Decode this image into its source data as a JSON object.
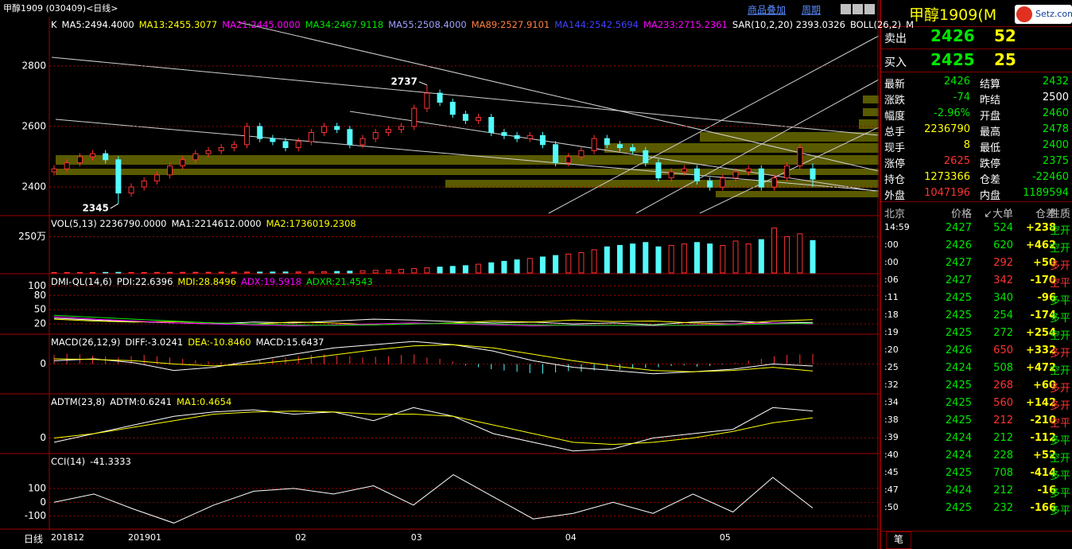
{
  "header": {
    "title": "甲醇1909 (030409)<日线>",
    "buttons": [
      "商品叠加",
      "周期"
    ]
  },
  "chart_data": [
    {
      "type": "candlestick",
      "up_color": "#ff3232",
      "down_color": "#54fcfc",
      "legend": [
        {
          "text": "K",
          "color": "#ffffff"
        },
        {
          "text": "MA5:2494.4000",
          "color": "#ffffff"
        },
        {
          "text": "MA13:2455.3077",
          "color": "#ffff00"
        },
        {
          "text": "MA21:2445.0000",
          "color": "#ff00ff"
        },
        {
          "text": "MA34:2467.9118",
          "color": "#00e600"
        },
        {
          "text": "MA55:2508.4000",
          "color": "#a0a0ff"
        },
        {
          "text": "MA89:2527.9101",
          "color": "#ff8040"
        },
        {
          "text": "MA144:2542.5694",
          "color": "#4040ff"
        },
        {
          "text": "MA233:2715.2361",
          "color": "#ff00ff"
        },
        {
          "text": "SAR(10,2,20) 2393.0326",
          "color": "#ffffff"
        },
        {
          "text": "BOLL(26,2)",
          "color": "#ffffff"
        },
        {
          "text": "M",
          "color": "#ffffff"
        }
      ],
      "ylim": [
        2308,
        2960
      ],
      "yticks": [
        2400,
        2600,
        2800
      ],
      "annotations": [
        2737,
        2345
      ],
      "ohlc": [
        [
          2450,
          2472,
          2438,
          2460
        ],
        [
          2460,
          2492,
          2448,
          2480
        ],
        [
          2480,
          2512,
          2468,
          2500
        ],
        [
          2500,
          2522,
          2488,
          2510
        ],
        [
          2510,
          2522,
          2478,
          2490
        ],
        [
          2490,
          2502,
          2345,
          2380
        ],
        [
          2380,
          2412,
          2368,
          2400
        ],
        [
          2400,
          2432,
          2388,
          2420
        ],
        [
          2420,
          2452,
          2408,
          2440
        ],
        [
          2440,
          2482,
          2428,
          2470
        ],
        [
          2470,
          2502,
          2458,
          2490
        ],
        [
          2490,
          2522,
          2478,
          2510
        ],
        [
          2510,
          2532,
          2498,
          2520
        ],
        [
          2520,
          2542,
          2508,
          2530
        ],
        [
          2530,
          2552,
          2518,
          2540
        ],
        [
          2540,
          2612,
          2528,
          2600
        ],
        [
          2600,
          2612,
          2548,
          2560
        ],
        [
          2560,
          2572,
          2538,
          2550
        ],
        [
          2550,
          2562,
          2518,
          2530
        ],
        [
          2530,
          2562,
          2518,
          2550
        ],
        [
          2550,
          2592,
          2538,
          2580
        ],
        [
          2580,
          2612,
          2568,
          2600
        ],
        [
          2600,
          2612,
          2578,
          2590
        ],
        [
          2590,
          2602,
          2528,
          2540
        ],
        [
          2540,
          2572,
          2528,
          2560
        ],
        [
          2560,
          2592,
          2548,
          2580
        ],
        [
          2580,
          2602,
          2568,
          2590
        ],
        [
          2590,
          2612,
          2578,
          2600
        ],
        [
          2600,
          2672,
          2588,
          2660
        ],
        [
          2660,
          2737,
          2648,
          2710
        ],
        [
          2710,
          2722,
          2668,
          2680
        ],
        [
          2680,
          2692,
          2628,
          2640
        ],
        [
          2640,
          2652,
          2608,
          2620
        ],
        [
          2620,
          2642,
          2608,
          2630
        ],
        [
          2630,
          2642,
          2568,
          2580
        ],
        [
          2580,
          2592,
          2558,
          2570
        ],
        [
          2570,
          2582,
          2548,
          2560
        ],
        [
          2560,
          2582,
          2548,
          2570
        ],
        [
          2570,
          2582,
          2528,
          2540
        ],
        [
          2540,
          2552,
          2468,
          2480
        ],
        [
          2480,
          2512,
          2468,
          2500
        ],
        [
          2500,
          2532,
          2488,
          2520
        ],
        [
          2520,
          2572,
          2508,
          2560
        ],
        [
          2560,
          2572,
          2528,
          2540
        ],
        [
          2540,
          2552,
          2518,
          2530
        ],
        [
          2530,
          2542,
          2508,
          2520
        ],
        [
          2520,
          2532,
          2468,
          2480
        ],
        [
          2480,
          2492,
          2418,
          2430
        ],
        [
          2430,
          2462,
          2418,
          2450
        ],
        [
          2450,
          2472,
          2438,
          2460
        ],
        [
          2460,
          2472,
          2408,
          2420
        ],
        [
          2420,
          2432,
          2388,
          2400
        ],
        [
          2400,
          2442,
          2388,
          2430
        ],
        [
          2430,
          2462,
          2418,
          2450
        ],
        [
          2450,
          2472,
          2438,
          2460
        ],
        [
          2460,
          2472,
          2388,
          2400
        ],
        [
          2400,
          2442,
          2388,
          2430
        ],
        [
          2430,
          2482,
          2418,
          2470
        ],
        [
          2470,
          2542,
          2458,
          2530
        ],
        [
          2460,
          2478,
          2400,
          2426
        ]
      ]
    },
    {
      "type": "bar",
      "legend": [
        {
          "text": "VOL(5,13) 2236790.0000",
          "color": "#ffffff"
        },
        {
          "text": "MA1:2214612.0000",
          "color": "#ffffff"
        },
        {
          "text": "MA2:1736019.2308",
          "color": "#ffff00"
        }
      ],
      "ylim": [
        0,
        3900000
      ],
      "yticks": [
        {
          "value": 2500000,
          "label": "250万"
        }
      ],
      "values": [
        30000,
        25000,
        28000,
        30000,
        35000,
        40000,
        30000,
        32000,
        35000,
        38000,
        40000,
        42000,
        45000,
        50000,
        55000,
        60000,
        58000,
        62000,
        65000,
        70000,
        80000,
        90000,
        100000,
        120000,
        150000,
        180000,
        200000,
        250000,
        300000,
        350000,
        400000,
        450000,
        500000,
        600000,
        700000,
        800000,
        900000,
        1000000,
        1100000,
        1200000,
        1300000,
        1400000,
        1600000,
        1800000,
        1900000,
        2000000,
        2100000,
        1800000,
        1900000,
        2000000,
        2100000,
        2000000,
        1900000,
        2200000,
        2000000,
        2300000,
        3100000,
        2500000,
        2700000,
        2236790
      ]
    },
    {
      "type": "line",
      "legend": [
        {
          "text": "DMI-QL(14,6)",
          "color": "#ffffff"
        },
        {
          "text": "PDI:22.6396",
          "color": "#ffffff"
        },
        {
          "text": "MDI:28.8496",
          "color": "#ffff00"
        },
        {
          "text": "ADX:19.5918",
          "color": "#ff00ff"
        },
        {
          "text": "ADXR:21.4543",
          "color": "#00e600"
        }
      ],
      "ylim": [
        0,
        124
      ],
      "yticks": [
        20,
        50,
        80,
        100
      ],
      "series": [
        {
          "color": "#ffffff",
          "values": [
            32,
            28,
            25,
            22,
            20,
            24,
            22,
            26,
            30,
            28,
            25,
            22,
            24,
            20,
            22,
            18,
            24,
            26,
            22,
            23
          ]
        },
        {
          "color": "#ffff00",
          "values": [
            30,
            26,
            24,
            25,
            22,
            20,
            24,
            22,
            18,
            20,
            22,
            26,
            24,
            28,
            25,
            26,
            22,
            20,
            26,
            29
          ]
        },
        {
          "color": "#ff00ff",
          "values": [
            35,
            30,
            26,
            22,
            20,
            18,
            16,
            18,
            20,
            22,
            20,
            18,
            16,
            18,
            17,
            16,
            18,
            20,
            22,
            20
          ]
        },
        {
          "color": "#00e600",
          "values": [
            38,
            34,
            30,
            26,
            22,
            20,
            18,
            17,
            18,
            20,
            21,
            20,
            18,
            17,
            17,
            17,
            17,
            18,
            20,
            21
          ]
        }
      ]
    },
    {
      "type": "line",
      "up_color": "#ff3232",
      "down_color": "#54fcfc",
      "legend": [
        {
          "text": "MACD(26,12,9)",
          "color": "#ffffff"
        },
        {
          "text": "DIFF:-3.0241",
          "color": "#ffffff"
        },
        {
          "text": "DEA:-10.8460",
          "color": "#ffff00"
        },
        {
          "text": "MACD:15.6437",
          "color": "#ffffff"
        }
      ],
      "ylim": [
        -45,
        45
      ],
      "yticks": [
        0
      ],
      "bars": [
        14,
        16,
        15,
        13,
        12,
        10,
        12,
        14,
        12,
        10,
        8,
        6,
        4,
        3,
        2,
        4,
        6,
        8,
        10,
        12,
        14,
        15,
        13,
        12,
        10,
        11,
        12,
        14,
        15,
        10,
        8,
        4,
        -2,
        -5,
        -8,
        -10,
        -12,
        -14,
        -15,
        -13,
        -11,
        -12,
        -10,
        -8,
        -9,
        -7,
        -6,
        -5,
        -3,
        -2,
        -4,
        -3,
        -1,
        2,
        5,
        8,
        12,
        14,
        15,
        15.6437
      ],
      "series": [
        {
          "color": "#ffffff",
          "values": [
            5,
            8,
            2,
            -10,
            -5,
            5,
            15,
            25,
            30,
            35,
            30,
            20,
            5,
            -5,
            -10,
            -15,
            -12,
            -8,
            0,
            -3.0241
          ]
        },
        {
          "color": "#ffff00",
          "values": [
            8,
            7,
            5,
            0,
            -3,
            0,
            6,
            14,
            22,
            28,
            30,
            25,
            15,
            5,
            -3,
            -10,
            -12,
            -10,
            -5,
            -10.846
          ]
        }
      ]
    },
    {
      "type": "line",
      "legend": [
        {
          "text": "ADTM(23,8)",
          "color": "#ffffff"
        },
        {
          "text": "ADTM:0.6241",
          "color": "#ffffff"
        },
        {
          "text": "MA1:0.4654",
          "color": "#ffff00"
        }
      ],
      "ylim": [
        -0.34,
        1.0
      ],
      "yticks": [
        0
      ],
      "series": [
        {
          "color": "#ffffff",
          "values": [
            -0.1,
            0.1,
            0.3,
            0.5,
            0.6,
            0.65,
            0.55,
            0.6,
            0.4,
            0.7,
            0.5,
            0.1,
            -0.1,
            -0.3,
            -0.25,
            0.0,
            0.1,
            0.2,
            0.7,
            0.6241
          ]
        },
        {
          "color": "#ffff00",
          "values": [
            0,
            0.1,
            0.25,
            0.4,
            0.55,
            0.6,
            0.62,
            0.6,
            0.55,
            0.55,
            0.5,
            0.3,
            0.1,
            -0.1,
            -0.15,
            -0.1,
            0.0,
            0.15,
            0.35,
            0.4654
          ]
        }
      ]
    },
    {
      "type": "line",
      "legend": [
        {
          "text": "CCI(14)",
          "color": "#ffffff"
        },
        {
          "text": "-41.3333",
          "color": "#ffffff"
        }
      ],
      "ylim": [
        -188,
        347
      ],
      "yticks": [
        -100,
        0,
        100
      ],
      "series": [
        {
          "color": "#ffffff",
          "values": [
            0,
            60,
            -50,
            -150,
            -20,
            80,
            100,
            60,
            120,
            -20,
            200,
            40,
            -120,
            -80,
            0,
            -80,
            60,
            -70,
            180,
            -41.3333
          ]
        }
      ]
    }
  ],
  "x_axis": {
    "label": "日线",
    "months": [
      "201812",
      "201901",
      "02",
      "03",
      "04",
      "05"
    ]
  },
  "quote": {
    "title": "甲醇1909(M",
    "logo": "Setz.com",
    "ask": {
      "label": "卖出",
      "price": "2426",
      "volume": "52"
    },
    "bid": {
      "label": "买入",
      "price": "2425",
      "volume": "25"
    },
    "stats": [
      [
        {
          "label": "最新",
          "value": "2426",
          "color": "#00e600"
        },
        {
          "label": "结算",
          "value": "2432",
          "color": "#00e600"
        }
      ],
      [
        {
          "label": "涨跌",
          "value": "-74",
          "color": "#00e600"
        },
        {
          "label": "昨结",
          "value": "2500",
          "color": "#ffffff"
        }
      ],
      [
        {
          "label": "幅度",
          "value": "-2.96%",
          "color": "#00e600"
        },
        {
          "label": "开盘",
          "value": "2460",
          "color": "#00e600"
        }
      ],
      [
        {
          "label": "总手",
          "value": "2236790",
          "color": "#ffff00"
        },
        {
          "label": "最高",
          "value": "2478",
          "color": "#00e600"
        }
      ],
      [
        {
          "label": "现手",
          "value": "8",
          "color": "#ffff00"
        },
        {
          "label": "最低",
          "value": "2400",
          "color": "#00e600"
        }
      ],
      [
        {
          "label": "涨停",
          "value": "2625",
          "color": "#ff3232"
        },
        {
          "label": "跌停",
          "value": "2375",
          "color": "#00e600"
        }
      ],
      [
        {
          "label": "持仓",
          "value": "1273366",
          "color": "#ffff00"
        },
        {
          "label": "仓差",
          "value": "-22460",
          "color": "#00e600"
        }
      ],
      [
        {
          "label": "外盘",
          "value": "1047196",
          "color": "#ff3232"
        },
        {
          "label": "内盘",
          "value": "1189594",
          "color": "#00e600"
        }
      ]
    ]
  },
  "ticks": {
    "columns": [
      "北京",
      "价格",
      "↙大单",
      "仓差",
      "性质"
    ],
    "rows": [
      [
        "14:59",
        "2427",
        "524",
        "+238",
        "空开"
      ],
      [
        ":00",
        "2426",
        "620",
        "+462",
        "空开"
      ],
      [
        ":00",
        "2427",
        "292",
        "+50",
        "多开"
      ],
      [
        ":06",
        "2427",
        "342",
        "-170",
        "空平"
      ],
      [
        ":11",
        "2425",
        "340",
        "-96",
        "多平"
      ],
      [
        ":18",
        "2425",
        "254",
        "-174",
        "多平"
      ],
      [
        ":19",
        "2425",
        "272",
        "+254",
        "空开"
      ],
      [
        ":20",
        "2426",
        "650",
        "+332",
        "多开"
      ],
      [
        ":25",
        "2424",
        "508",
        "+472",
        "空开"
      ],
      [
        ":32",
        "2425",
        "268",
        "+60",
        "多开"
      ],
      [
        ":34",
        "2425",
        "560",
        "+142",
        "多开"
      ],
      [
        ":38",
        "2425",
        "212",
        "-210",
        "空平"
      ],
      [
        ":39",
        "2424",
        "212",
        "-112",
        "多平"
      ],
      [
        ":40",
        "2424",
        "228",
        "+52",
        "空开"
      ],
      [
        ":45",
        "2425",
        "708",
        "-414",
        "多平"
      ],
      [
        ":47",
        "2424",
        "212",
        "-16",
        "多平"
      ],
      [
        ":50",
        "2425",
        "232",
        "-166",
        "多平"
      ]
    ],
    "volume_colors": [
      "#00e600",
      "#00e600",
      "#ff3232",
      "#ff3232",
      "#00e600",
      "#00e600",
      "#00e600",
      "#ff3232",
      "#00e600",
      "#ff3232",
      "#ff3232",
      "#ff3232",
      "#00e600",
      "#00e600",
      "#00e600",
      "#00e600",
      "#00e600"
    ],
    "nature_colors": {
      "空开": "#00e600",
      "多开": "#ff3232",
      "空平": "#ff3232",
      "多平": "#00e600"
    },
    "tab": "笔"
  }
}
